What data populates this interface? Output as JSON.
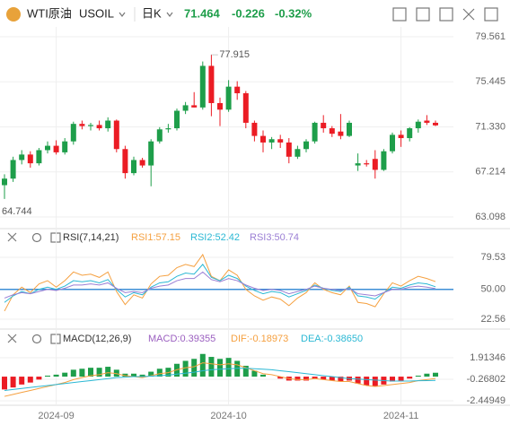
{
  "header": {
    "name": "WTI原油",
    "symbol": "USOIL",
    "period": "日K",
    "price": "71.464",
    "change": "-0.226",
    "change_pct": "-0.32%"
  },
  "chart_data": [
    {
      "type": "candlestick",
      "high_label": "77.915",
      "low_label": "64.744",
      "categories": [
        null,
        null,
        null,
        null,
        null,
        null,
        "2024-09",
        null,
        null,
        null,
        null,
        null,
        null,
        null,
        null,
        null,
        null,
        null,
        null,
        null,
        null,
        null,
        null,
        null,
        null,
        null,
        "2024-10",
        null,
        null,
        null,
        null,
        null,
        null,
        null,
        null,
        null,
        null,
        null,
        null,
        null,
        null,
        null,
        null,
        null,
        null,
        null,
        "2024-11",
        null,
        null,
        null,
        null
      ],
      "open": [
        66.0,
        66.6,
        68.3,
        68.8,
        68.0,
        69.2,
        69.6,
        69.0,
        70.0,
        71.6,
        71.4,
        71.5,
        71.2,
        71.9,
        69.3,
        67.1,
        68.3,
        67.8,
        70.0,
        71.1,
        71.2,
        72.8,
        73.3,
        73.1,
        76.9,
        73.5,
        72.9,
        75.0,
        74.4,
        71.7,
        70.5,
        69.9,
        70.2,
        69.9,
        68.6,
        69.3,
        70.0,
        71.7,
        71.2,
        70.9,
        70.5,
        67.8,
        68.0,
        68.4,
        67.4,
        69.1,
        70.6,
        70.3,
        71.2,
        71.9,
        71.7
      ],
      "high": [
        67.0,
        68.6,
        69.2,
        69.1,
        69.4,
        70.0,
        70.1,
        70.3,
        71.8,
        71.9,
        71.7,
        71.9,
        72.2,
        72.0,
        69.6,
        68.6,
        68.5,
        70.2,
        71.3,
        71.6,
        73.0,
        73.6,
        74.5,
        77.3,
        77.915,
        74.0,
        75.6,
        75.5,
        74.6,
        71.9,
        71.0,
        70.4,
        70.6,
        70.3,
        69.6,
        70.2,
        71.8,
        72.4,
        71.4,
        72.5,
        71.9,
        68.9,
        68.3,
        69.2,
        69.3,
        70.8,
        71.0,
        71.3,
        72.0,
        72.4,
        71.9
      ],
      "low": [
        64.744,
        66.3,
        67.9,
        67.6,
        67.8,
        68.9,
        68.8,
        68.8,
        69.7,
        71.1,
        71.0,
        71.0,
        70.9,
        69.0,
        66.6,
        66.9,
        67.6,
        65.9,
        69.8,
        70.8,
        71.0,
        72.5,
        73.1,
        72.9,
        72.3,
        71.4,
        72.7,
        73.8,
        71.2,
        70.0,
        69.0,
        69.3,
        69.4,
        68.0,
        68.4,
        69.0,
        69.8,
        70.8,
        70.4,
        70.2,
        70.4,
        67.3,
        67.7,
        66.6,
        67.3,
        68.9,
        69.5,
        70.0,
        70.8,
        71.5,
        71.4
      ],
      "close": [
        66.6,
        68.3,
        68.8,
        68.0,
        69.2,
        69.6,
        69.0,
        70.0,
        71.6,
        71.4,
        71.5,
        71.2,
        71.9,
        69.3,
        67.1,
        68.3,
        67.8,
        70.0,
        71.1,
        71.2,
        72.8,
        73.3,
        73.1,
        76.9,
        73.5,
        72.9,
        75.0,
        74.4,
        71.7,
        70.5,
        69.9,
        70.2,
        69.9,
        68.6,
        69.3,
        70.0,
        71.7,
        71.2,
        70.7,
        70.5,
        71.7,
        68.0,
        67.9,
        67.4,
        69.1,
        70.6,
        70.3,
        71.2,
        71.8,
        71.7,
        71.464
      ],
      "up_color": "#1e9e4a",
      "down_color": "#eb1c24",
      "ylim": [
        62.03,
        80.46
      ],
      "yticks": [
        79.561,
        75.445,
        {
          "value": 71.33,
          "label": "71.330"
        },
        67.214,
        63.098
      ],
      "grid": true
    },
    {
      "type": "line",
      "title": "RSI(7,14,21)",
      "ylim": [
        15.1,
        89.4
      ],
      "yticks": [
        79.53,
        {
          "value": 50,
          "label": "50.00"
        },
        22.56
      ],
      "hline": 50,
      "hline_color": "#3d8fd6",
      "series": [
        {
          "name": "RSI1:57.15",
          "color": "#f5a040",
          "values": [
            30,
            45,
            52,
            47,
            55,
            58,
            52,
            58,
            66,
            63,
            64,
            61,
            66,
            48,
            36,
            45,
            42,
            55,
            62,
            63,
            70,
            73,
            71,
            82,
            62,
            58,
            68,
            63,
            50,
            44,
            40,
            43,
            41,
            35,
            42,
            47,
            56,
            50,
            47,
            45,
            53,
            38,
            37,
            34,
            46,
            56,
            53,
            58,
            62,
            60,
            57.15
          ]
        },
        {
          "name": "RSI2:52.42",
          "color": "#2bb8d4",
          "values": [
            38,
            44,
            48,
            46,
            50,
            52,
            50,
            53,
            58,
            57,
            58,
            56,
            59,
            50,
            43,
            47,
            45,
            52,
            56,
            57,
            62,
            65,
            64,
            73,
            61,
            58,
            63,
            60,
            53,
            49,
            46,
            48,
            47,
            43,
            46,
            49,
            54,
            51,
            49,
            48,
            52,
            44,
            43,
            41,
            47,
            52,
            51,
            54,
            56,
            55,
            52.42
          ]
        },
        {
          "name": "RSI3:50.74",
          "color": "#9b7fd4",
          "values": [
            42,
            45,
            47,
            46,
            48,
            50,
            49,
            51,
            54,
            54,
            55,
            54,
            56,
            51,
            47,
            48,
            47,
            51,
            53,
            54,
            58,
            60,
            60,
            66,
            59,
            57,
            60,
            58,
            54,
            51,
            49,
            50,
            49,
            46,
            48,
            50,
            53,
            51,
            50,
            49,
            51,
            46,
            45,
            44,
            47,
            50,
            50,
            52,
            53,
            52,
            50.74
          ]
        }
      ]
    },
    {
      "type": "macd",
      "title": "MACD(12,26,9)",
      "ylim": [
        -2.904,
        4.277
      ],
      "yticks": [
        1.91346,
        -0.26802,
        -2.44949
      ],
      "series": [
        {
          "name": "MACD:0.39355",
          "type": "bar",
          "color": "#9b5fc0",
          "up_color": "#1e9e4a",
          "down_color": "#eb1c24",
          "values": [
            -1.3,
            -1.1,
            -0.8,
            -0.6,
            -0.3,
            0.1,
            0.2,
            0.4,
            0.7,
            0.8,
            0.9,
            0.9,
            1.0,
            0.7,
            0.3,
            0.3,
            0.2,
            0.5,
            0.8,
            0.9,
            1.3,
            1.6,
            1.8,
            2.3,
            2.0,
            1.8,
            1.9,
            1.6,
            1.1,
            0.6,
            0.2,
            0.0,
            -0.2,
            -0.4,
            -0.4,
            -0.4,
            -0.2,
            -0.3,
            -0.4,
            -0.5,
            -0.4,
            -0.7,
            -0.9,
            -1.0,
            -0.8,
            -0.5,
            -0.4,
            -0.2,
            0.1,
            0.3,
            0.39355
          ]
        },
        {
          "name": "DIF:-0.18973",
          "type": "line",
          "color": "#f5a040",
          "values": [
            -2.0,
            -1.8,
            -1.6,
            -1.4,
            -1.2,
            -1.0,
            -0.8,
            -0.6,
            -0.3,
            -0.1,
            0.1,
            0.2,
            0.4,
            0.3,
            0.1,
            0.0,
            -0.1,
            0.1,
            0.3,
            0.4,
            0.7,
            0.9,
            1.0,
            1.4,
            1.3,
            1.2,
            1.3,
            1.2,
            0.9,
            0.6,
            0.3,
            0.2,
            0.0,
            -0.2,
            -0.3,
            -0.3,
            -0.2,
            -0.3,
            -0.4,
            -0.5,
            -0.5,
            -0.7,
            -0.9,
            -1.0,
            -0.9,
            -0.8,
            -0.7,
            -0.6,
            -0.4,
            -0.3,
            -0.18973
          ]
        },
        {
          "name": "DEA:-0.38650",
          "type": "line",
          "color": "#2bb8d4",
          "values": [
            -1.4,
            -1.3,
            -1.2,
            -1.1,
            -1.0,
            -0.9,
            -0.8,
            -0.7,
            -0.6,
            -0.5,
            -0.4,
            -0.3,
            -0.2,
            -0.1,
            -0.05,
            0.0,
            0.0,
            0.05,
            0.1,
            0.15,
            0.25,
            0.35,
            0.45,
            0.6,
            0.7,
            0.75,
            0.8,
            0.85,
            0.85,
            0.8,
            0.75,
            0.7,
            0.6,
            0.5,
            0.4,
            0.3,
            0.2,
            0.1,
            0.0,
            -0.1,
            -0.2,
            -0.25,
            -0.3,
            -0.35,
            -0.4,
            -0.45,
            -0.45,
            -0.45,
            -0.42,
            -0.4,
            -0.3865
          ]
        }
      ]
    }
  ]
}
